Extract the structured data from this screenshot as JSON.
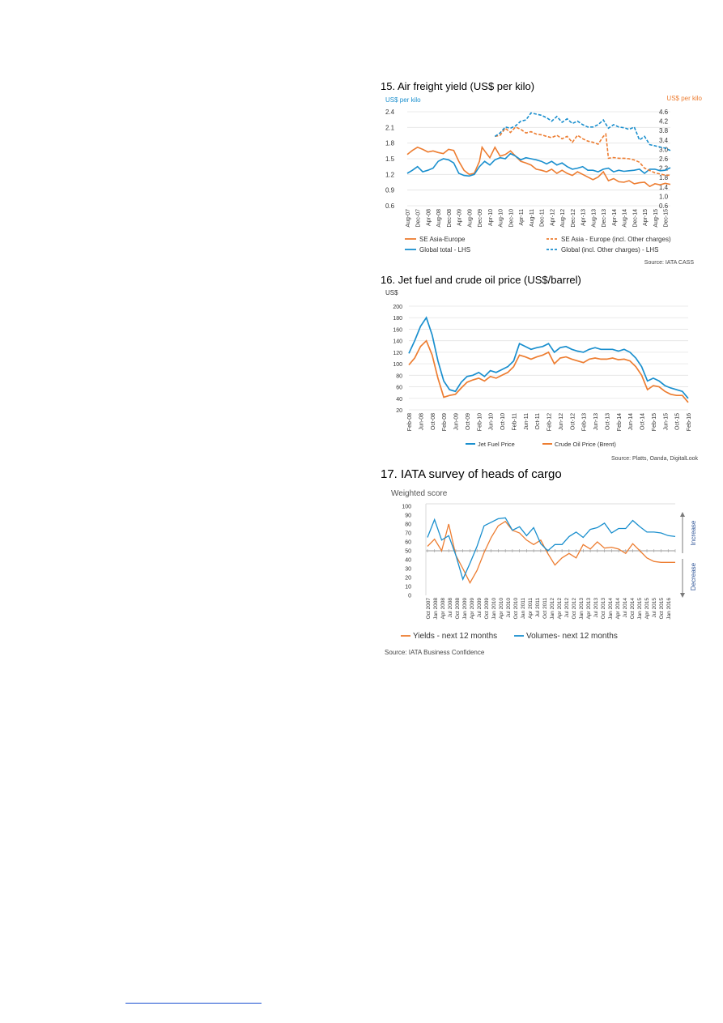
{
  "chart_data": [
    {
      "type": "line",
      "title": "15. Air freight yield (US$ per kilo)",
      "ylabel_left": "US$ per kilo",
      "ylabel_right": "US$ per kilo",
      "left_axis_color": "#1a8fce",
      "right_axis_color": "#ed7d31",
      "y_left_ticks": [
        "2.4",
        "2.1",
        "1.8",
        "1.5",
        "1.2",
        "0.9",
        "0.6"
      ],
      "y_right_ticks": [
        "4.6",
        "4.2",
        "3.8",
        "3.4",
        "3.0",
        "2.6",
        "2.2",
        "1.8",
        "1.4",
        "1.0",
        "0.6"
      ],
      "ylim_left": [
        0.6,
        2.4
      ],
      "ylim_right": [
        0.6,
        4.6
      ],
      "x_ticks": [
        "Aug-07",
        "Dec-07",
        "Apr-08",
        "Aug-08",
        "Dec-08",
        "Apr-09",
        "Aug-09",
        "Dec-09",
        "Apr-10",
        "Aug-10",
        "Dec-10",
        "Apr-11",
        "Aug-11",
        "Dec-11",
        "Apr-12",
        "Aug-12",
        "Dec-12",
        "Apr-13",
        "Aug-13",
        "Dec-13",
        "Apr-14",
        "Aug-14",
        "Dec-14",
        "Apr-15",
        "Aug-15",
        "Dec-15"
      ],
      "x_index_range": [
        0,
        102
      ],
      "series": [
        {
          "name": "SE Asia-Europe",
          "axis": "left",
          "color": "#ed7d31",
          "dash": false,
          "x": [
            0,
            2,
            4,
            6,
            8,
            10,
            12,
            14,
            16,
            18,
            20,
            22,
            24,
            26,
            28,
            29,
            30,
            32,
            34,
            36,
            38,
            40,
            42,
            44,
            46,
            48,
            50,
            52,
            54,
            56,
            58,
            60,
            62,
            64,
            66,
            68,
            70,
            72,
            74,
            76,
            78,
            80,
            82,
            84,
            86,
            88,
            90,
            92,
            94,
            96,
            98,
            100,
            102
          ],
          "y": [
            1.58,
            1.66,
            1.72,
            1.68,
            1.63,
            1.65,
            1.62,
            1.6,
            1.68,
            1.66,
            1.45,
            1.28,
            1.2,
            1.22,
            1.45,
            1.72,
            1.65,
            1.52,
            1.72,
            1.55,
            1.58,
            1.65,
            1.55,
            1.45,
            1.42,
            1.38,
            1.3,
            1.28,
            1.25,
            1.3,
            1.22,
            1.28,
            1.22,
            1.18,
            1.25,
            1.2,
            1.15,
            1.1,
            1.15,
            1.25,
            1.08,
            1.12,
            1.06,
            1.05,
            1.08,
            1.02,
            1.04,
            1.05,
            0.97,
            1.02,
            1.0,
            1.03,
            1.01
          ]
        },
        {
          "name": "Global total  - LHS",
          "axis": "left",
          "color": "#1a8fce",
          "dash": false,
          "x": [
            0,
            2,
            4,
            6,
            8,
            10,
            12,
            14,
            16,
            18,
            20,
            22,
            24,
            26,
            28,
            30,
            32,
            34,
            36,
            38,
            40,
            42,
            44,
            46,
            48,
            50,
            52,
            54,
            56,
            58,
            60,
            62,
            64,
            66,
            68,
            70,
            72,
            74,
            76,
            78,
            80,
            82,
            84,
            86,
            88,
            90,
            92,
            94,
            96,
            98,
            100,
            102
          ],
          "y": [
            1.22,
            1.28,
            1.35,
            1.25,
            1.28,
            1.32,
            1.45,
            1.5,
            1.48,
            1.42,
            1.22,
            1.18,
            1.17,
            1.2,
            1.35,
            1.45,
            1.38,
            1.48,
            1.52,
            1.5,
            1.6,
            1.55,
            1.48,
            1.52,
            1.5,
            1.48,
            1.45,
            1.4,
            1.45,
            1.38,
            1.42,
            1.35,
            1.3,
            1.32,
            1.35,
            1.28,
            1.28,
            1.25,
            1.3,
            1.32,
            1.25,
            1.28,
            1.26,
            1.27,
            1.28,
            1.3,
            1.22,
            1.3,
            1.3,
            1.27,
            1.28,
            1.33
          ]
        },
        {
          "name": "SE Asia - Europe (incl. Other charges)",
          "axis": "right",
          "color": "#ed7d31",
          "dash": true,
          "x": [
            34,
            36,
            38,
            40,
            42,
            44,
            46,
            48,
            50,
            52,
            54,
            56,
            58,
            60,
            62,
            64,
            66,
            68,
            70,
            72,
            74,
            76,
            77,
            78,
            80,
            82,
            84,
            86,
            88,
            90,
            92,
            94,
            96,
            98,
            100,
            102
          ],
          "y": [
            3.55,
            3.6,
            3.9,
            3.72,
            3.95,
            3.85,
            3.7,
            3.75,
            3.65,
            3.62,
            3.55,
            3.5,
            3.6,
            3.45,
            3.55,
            3.3,
            3.6,
            3.45,
            3.35,
            3.3,
            3.22,
            3.55,
            3.65,
            2.62,
            2.65,
            2.62,
            2.62,
            2.6,
            2.55,
            2.45,
            2.2,
            2.1,
            2.0,
            1.95,
            1.9,
            1.9
          ]
        },
        {
          "name": "Global (incl. Other charges) - LHS",
          "axis": "right",
          "color": "#1a8fce",
          "dash": true,
          "x": [
            34,
            36,
            38,
            40,
            42,
            44,
            46,
            48,
            50,
            52,
            54,
            56,
            58,
            60,
            62,
            64,
            66,
            68,
            70,
            72,
            74,
            76,
            78,
            80,
            82,
            84,
            86,
            88,
            90,
            92,
            94,
            96,
            98,
            100,
            102
          ],
          "y": [
            3.55,
            3.7,
            3.95,
            3.9,
            4.0,
            4.2,
            4.25,
            4.55,
            4.5,
            4.45,
            4.35,
            4.2,
            4.4,
            4.15,
            4.3,
            4.1,
            4.2,
            4.05,
            3.95,
            3.95,
            4.05,
            4.25,
            3.9,
            4.05,
            3.95,
            3.92,
            3.85,
            3.95,
            3.4,
            3.55,
            3.2,
            3.15,
            3.1,
            3.05,
            2.95
          ]
        }
      ],
      "legend": "bottom",
      "source": "Source: IATA CASS"
    },
    {
      "type": "line",
      "title": "16. Jet fuel and crude oil price (US$/barrel)",
      "ylabel": "US$",
      "y_ticks": [
        "200",
        "180",
        "160",
        "140",
        "120",
        "100",
        "80",
        "60",
        "40",
        "20"
      ],
      "ylim": [
        20,
        200
      ],
      "x_ticks": [
        "Feb-08",
        "Jun-08",
        "Oct-08",
        "Feb-09",
        "Jun-09",
        "Oct-09",
        "Feb-10",
        "Jun-10",
        "Oct-10",
        "Feb-11",
        "Jun-11",
        "Oct-11",
        "Feb-12",
        "Jun-12",
        "Oct-12",
        "Feb-13",
        "Jun-13",
        "Oct-13",
        "Feb-14",
        "Jun-14",
        "Oct-14",
        "Feb-15",
        "Jun-15",
        "Oct-15",
        "Feb-16"
      ],
      "x_index_range": [
        0,
        96
      ],
      "series": [
        {
          "name": "Jet Fuel Price",
          "color": "#1a8fce",
          "x": [
            0,
            2,
            4,
            6,
            8,
            10,
            12,
            14,
            16,
            18,
            20,
            22,
            24,
            26,
            28,
            30,
            32,
            34,
            36,
            38,
            40,
            42,
            44,
            46,
            48,
            50,
            52,
            54,
            56,
            58,
            60,
            62,
            64,
            66,
            68,
            70,
            72,
            74,
            76,
            78,
            80,
            82,
            84,
            86,
            88,
            90,
            92,
            94,
            96
          ],
          "y": [
            118,
            140,
            165,
            180,
            150,
            105,
            70,
            55,
            52,
            68,
            78,
            80,
            85,
            78,
            88,
            85,
            90,
            95,
            105,
            135,
            130,
            125,
            128,
            130,
            135,
            120,
            128,
            130,
            125,
            122,
            120,
            125,
            128,
            125,
            125,
            125,
            122,
            125,
            120,
            110,
            95,
            70,
            75,
            70,
            62,
            58,
            55,
            52,
            40
          ]
        },
        {
          "name": "Crude Oil Price (Brent)",
          "color": "#ed7d31",
          "x": [
            0,
            2,
            4,
            6,
            8,
            10,
            12,
            14,
            16,
            18,
            20,
            22,
            24,
            26,
            28,
            30,
            32,
            34,
            36,
            38,
            40,
            42,
            44,
            46,
            48,
            50,
            52,
            54,
            56,
            58,
            60,
            62,
            64,
            66,
            68,
            70,
            72,
            74,
            76,
            78,
            80,
            82,
            84,
            86,
            88,
            90,
            92,
            94,
            96
          ],
          "y": [
            98,
            110,
            130,
            140,
            115,
            75,
            42,
            45,
            47,
            58,
            68,
            72,
            75,
            70,
            78,
            75,
            80,
            85,
            95,
            115,
            112,
            108,
            112,
            115,
            120,
            100,
            110,
            112,
            108,
            105,
            102,
            108,
            110,
            108,
            108,
            110,
            107,
            108,
            105,
            95,
            80,
            55,
            62,
            60,
            52,
            47,
            45,
            45,
            33
          ]
        }
      ],
      "legend": "bottom",
      "source": "Source: Platts, Oanda, DigitalLook"
    },
    {
      "type": "line",
      "title": "17. IATA survey of heads of cargo",
      "ylabel": "Weighted score",
      "y_ticks": [
        "100",
        "90",
        "80",
        "70",
        "60",
        "50",
        "40",
        "30",
        "20",
        "10",
        "0"
      ],
      "ylim": [
        0,
        100
      ],
      "x_ticks": [
        "Oct 2007",
        "Jan 2008",
        "Apr 2008",
        "Jul 2008",
        "Oct 2008",
        "Jan 2009",
        "Apr 2009",
        "Jul 2009",
        "Oct 2009",
        "Jan 2010",
        "Apr 2010",
        "Jul 2010",
        "Oct 2010",
        "Jan 2011",
        "Apr 2011",
        "Jul 2011",
        "Oct 2011",
        "Jan 2012",
        "Apr 2012",
        "Jul 2012",
        "Oct 2012",
        "Jan 2013",
        "Apr 2013",
        "Jul 2013",
        "Oct 2013",
        "Jan 2014",
        "Apr 2014",
        "Jul 2014",
        "Oct 2014",
        "Jan 2015",
        "Apr 2015",
        "Jul 2015",
        "Oct 2015",
        "Jan 2016"
      ],
      "reference_line": 50,
      "annotations": [
        "Increase",
        "Decrease"
      ],
      "series": [
        {
          "name": "Yields - next 12 months",
          "color": "#ed7d31",
          "values": [
            55,
            63,
            50,
            80,
            45,
            30,
            14,
            28,
            48,
            65,
            78,
            83,
            73,
            70,
            62,
            57,
            62,
            47,
            34,
            42,
            47,
            42,
            57,
            52,
            60,
            53,
            54,
            52,
            47,
            58,
            50,
            42,
            38,
            37,
            37,
            37
          ]
        },
        {
          "name": "Volumes- next 12 months",
          "color": "#1a8fce",
          "values": [
            65,
            85,
            62,
            67,
            45,
            18,
            36,
            55,
            78,
            82,
            86,
            87,
            73,
            77,
            67,
            76,
            58,
            50,
            57,
            57,
            66,
            71,
            65,
            74,
            76,
            81,
            70,
            75,
            75,
            84,
            77,
            71,
            71,
            70,
            67,
            66
          ]
        }
      ],
      "legend": "bottom",
      "source": "Source: IATA Business Confidence"
    }
  ]
}
